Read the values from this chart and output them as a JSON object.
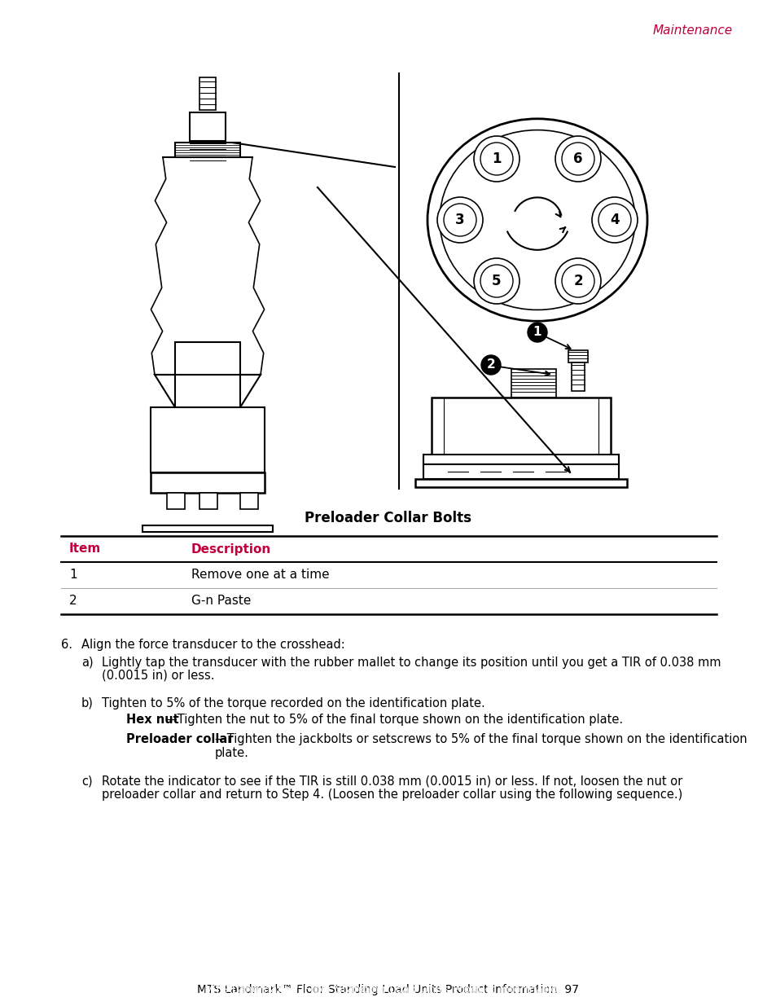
{
  "page_header": "Maintenance",
  "header_color": "#c0003c",
  "figure_title": "Preloader Collar Bolts",
  "table_headers": [
    "Item",
    "Description"
  ],
  "table_header_color": "#c0003c",
  "table_rows": [
    [
      "1",
      "Remove one at a time"
    ],
    [
      "2",
      "G-n Paste"
    ]
  ],
  "section_number": "6.",
  "section_text": "Align the force transducer to the crosshead:",
  "subsections": [
    {
      "label": "a)",
      "text": "Lightly tap the transducer with the rubber mallet to change its position until you get a TIR of 0.038 mm\n(0.0015 in) or less."
    },
    {
      "label": "b)",
      "text": "Tighten to 5% of the torque recorded on the identification plate.",
      "sub_items": [
        {
          "bold": "Hex nut",
          "rest": "—Tighten the nut to 5% of the final torque shown on the identification plate."
        },
        {
          "bold": "Preloader collar",
          "rest": "—Tighten the jackbolts or setscrews to 5% of the final torque shown on the identification\nplate."
        }
      ]
    },
    {
      "label": "c)",
      "text": "Rotate the indicator to see if the TIR is still 0.038 mm (0.0015 in) or less. If not, loosen the nut or\npreloader collar and return to Step 4. (Loosen the preloader collar using the following sequence.)"
    }
  ],
  "footer_text": "MTS Landmark™ Floor Standing Load Units Product Information  97",
  "bg_color": "#ffffff",
  "text_color": "#000000",
  "line_color": "#000000",
  "font_size_body": 10.5,
  "font_size_header": 11,
  "font_size_footer": 10
}
